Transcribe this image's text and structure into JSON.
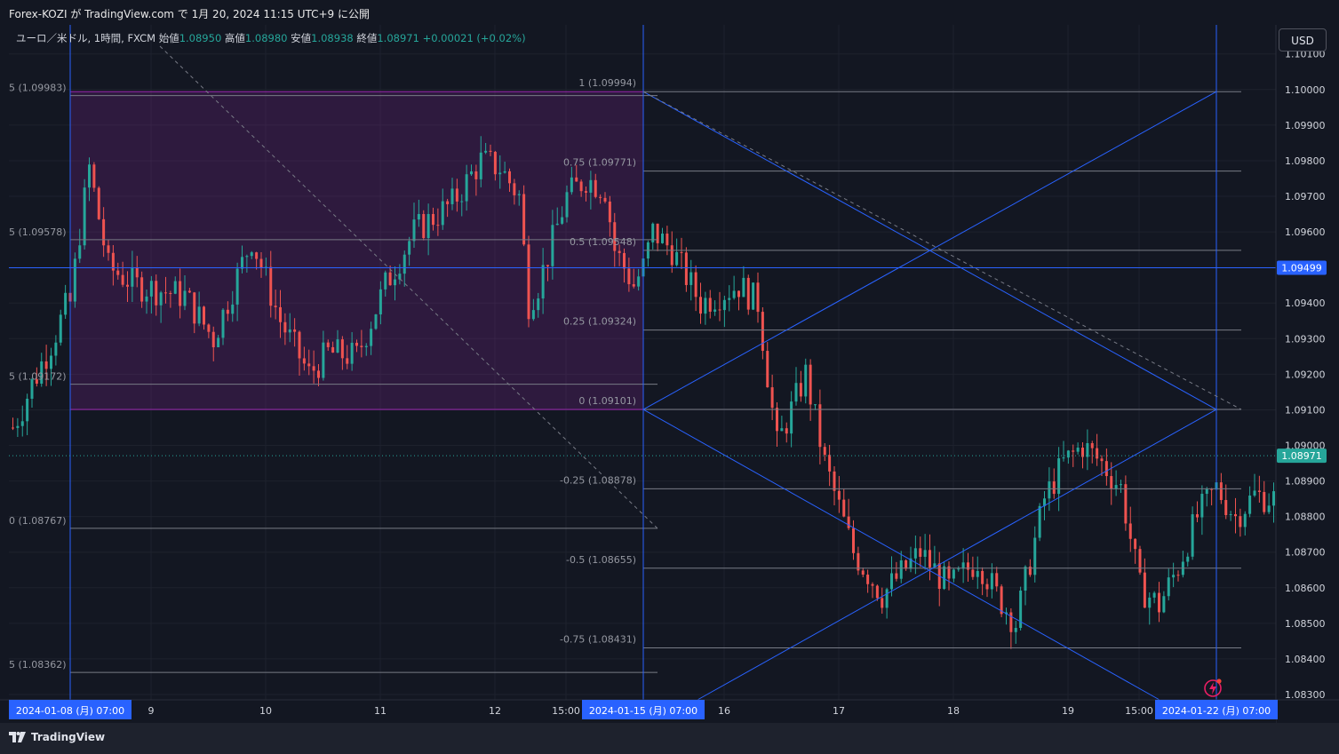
{
  "header": {
    "text": "Forex-KOZI が TradingView.com で 1月 20, 2024 11:15 UTC+9 に公開"
  },
  "ohlc": {
    "symbol": "ユーロ／米ドル, 1時間, FXCM",
    "open_label": "始値",
    "open": "1.08950",
    "high_label": "高値",
    "high": "1.08980",
    "low_label": "安値",
    "low": "1.08938",
    "close_label": "終値",
    "close": "1.08971",
    "change": "+0.00021 (+0.02%)"
  },
  "currency": "USD",
  "footer": {
    "brand": "TradingView"
  },
  "colors": {
    "up": "#26a69a",
    "down": "#ef5350",
    "accent": "#2962ff",
    "box": "#9c27b0",
    "bg": "#131722"
  },
  "chart_data": {
    "type": "candlestick",
    "instrument": "EUR/USD",
    "timeframe": "1H",
    "ylim": [
      1.083,
      1.1016
    ],
    "y_ticks": [
      "1.08300",
      "1.08400",
      "1.08500",
      "1.08600",
      "1.08700",
      "1.08800",
      "1.08900",
      "1.09000",
      "1.09100",
      "1.09200",
      "1.09300",
      "1.09400",
      "1.09500",
      "1.09600",
      "1.09700",
      "1.09800",
      "1.09900",
      "1.10000",
      "1.10100"
    ],
    "x_ticks": [
      "2024-01-08 (月)   07:00",
      "9",
      "10",
      "11",
      "12",
      "15:00",
      "2024-01-15 (月)   07:00",
      "16",
      "17",
      "18",
      "19",
      "15:00",
      "2024-01-22 (月)   07:00"
    ],
    "price_labels": [
      {
        "text": "1.09499",
        "value": 1.09499,
        "style": "crosshair"
      },
      {
        "text": "1.08971",
        "value": 1.08971,
        "style": "last"
      }
    ],
    "fib_left": [
      {
        "label": "5 (1.09983)",
        "value": 1.09983
      },
      {
        "label": "5 (1.09578)",
        "value": 1.09578
      },
      {
        "label": "5 (1.09172)",
        "value": 1.09172
      },
      {
        "label": "0 (1.08767)",
        "value": 1.08767
      },
      {
        "label": "5 (1.08362)",
        "value": 1.08362
      }
    ],
    "fib_right": [
      {
        "label": "1 (1.09994)",
        "value": 1.09994
      },
      {
        "label": "0.75 (1.09771)",
        "value": 1.09771
      },
      {
        "label": "0.5 (1.09548)",
        "value": 1.09548
      },
      {
        "label": "0.25 (1.09324)",
        "value": 1.09324
      },
      {
        "label": "0 (1.09101)",
        "value": 1.09101
      },
      {
        "label": "-0.25 (1.08878)",
        "value": 1.08878
      },
      {
        "label": "-0.5 (1.08655)",
        "value": 1.08655
      },
      {
        "label": "-0.75 (1.08431)",
        "value": 1.08431
      }
    ],
    "range_box": {
      "from": "2024-01-08 07:00",
      "to": "2024-01-15 07:00",
      "high": 1.09994,
      "low": 1.09101
    },
    "horizontal_line": 1.09499,
    "last_price": 1.08971,
    "candles_key_points": [
      {
        "t": "2024-01-08 07:00",
        "c": 1.0945
      },
      {
        "t": "2024-01-08 10:00",
        "c": 1.098
      },
      {
        "t": "2024-01-09 12:00",
        "c": 1.0935
      },
      {
        "t": "2024-01-10 01:00",
        "c": 1.0915
      },
      {
        "t": "2024-01-11 16:00",
        "c": 1.0982
      },
      {
        "t": "2024-01-12 01:00",
        "c": 1.094
      },
      {
        "t": "2024-01-12 15:00",
        "c": 1.097
      },
      {
        "t": "2024-01-15 07:00",
        "c": 1.095
      },
      {
        "t": "2024-01-16 10:00",
        "c": 1.093
      },
      {
        "t": "2024-01-17 03:00",
        "c": 1.087
      },
      {
        "t": "2024-01-18 01:00",
        "c": 1.085
      },
      {
        "t": "2024-01-18 18:00",
        "c": 1.0895
      },
      {
        "t": "2024-01-19 01:00",
        "c": 1.0855
      },
      {
        "t": "2024-01-19 16:00",
        "c": 1.088
      },
      {
        "t": "2024-01-20 06:00",
        "c": 1.08971
      }
    ]
  }
}
